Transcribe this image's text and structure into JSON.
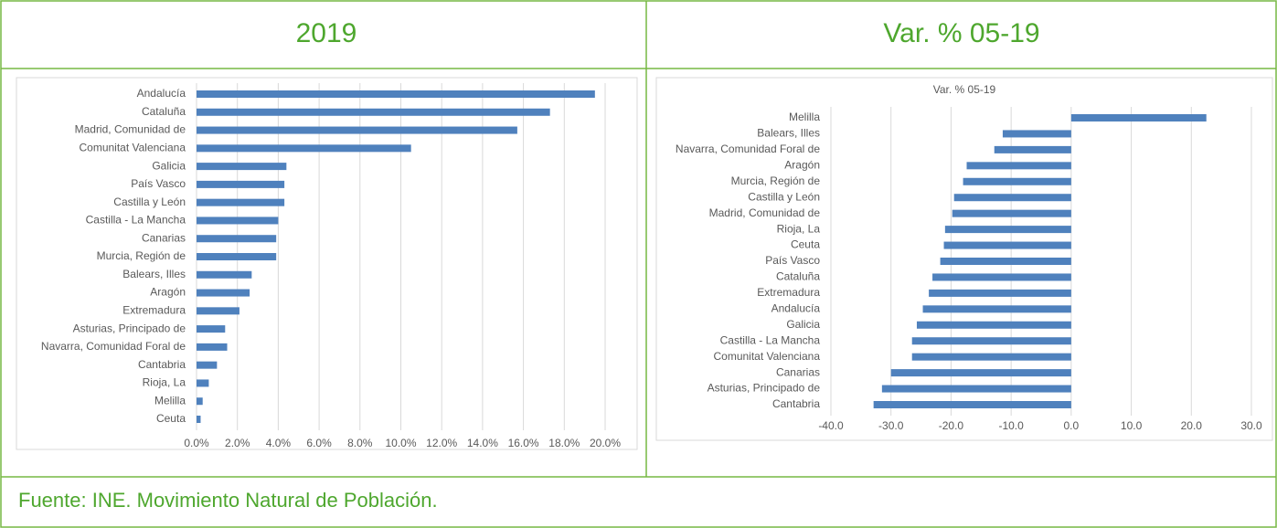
{
  "table": {
    "headers": [
      "2019",
      "Var. % 05-19"
    ],
    "footer": "Fuente: INE. Movimiento Natural de Población."
  },
  "chart_data": [
    {
      "type": "hbar",
      "color": "#4f81bd",
      "grid": true,
      "categories": [
        "Andalucía",
        "Cataluña",
        "Madrid, Comunidad de",
        "Comunitat Valenciana",
        "Galicia",
        "País Vasco",
        "Castilla y León",
        "Castilla - La Mancha",
        "Canarias",
        "Murcia, Región de",
        "Balears, Illes",
        "Aragón",
        "Extremadura",
        "Asturias, Principado de",
        "Navarra, Comunidad Foral de",
        "Cantabria",
        "Rioja, La",
        "Melilla",
        "Ceuta"
      ],
      "values": [
        19.5,
        17.3,
        15.7,
        10.5,
        4.4,
        4.3,
        4.3,
        4.0,
        3.9,
        3.9,
        2.7,
        2.6,
        2.1,
        1.4,
        1.5,
        1.0,
        0.6,
        0.3,
        0.2
      ],
      "xlim": [
        0,
        20
      ],
      "xticks": [
        {
          "value": 0,
          "label": "0.0%"
        },
        {
          "value": 2,
          "label": "2.0%"
        },
        {
          "value": 4,
          "label": "4.0%"
        },
        {
          "value": 6,
          "label": "6.0%"
        },
        {
          "value": 8,
          "label": "8.0%"
        },
        {
          "value": 10,
          "label": "10.0%"
        },
        {
          "value": 12,
          "label": "12.0%"
        },
        {
          "value": 14,
          "label": "14.0%"
        },
        {
          "value": 16,
          "label": "16.0%"
        },
        {
          "value": 18,
          "label": "18.0%"
        },
        {
          "value": 20,
          "label": "20.0%"
        }
      ]
    },
    {
      "type": "hbar",
      "title": "Var. % 05-19",
      "color": "#4f81bd",
      "grid": true,
      "categories": [
        "Melilla",
        "Balears, Illes",
        "Navarra, Comunidad Foral de",
        "Aragón",
        "Murcia, Región de",
        "Castilla y León",
        "Madrid, Comunidad de",
        "Rioja, La",
        "Ceuta",
        "País Vasco",
        "Cataluña",
        "Extremadura",
        "Andalucía",
        "Galicia",
        "Castilla - La Mancha",
        "Comunitat Valenciana",
        "Canarias",
        "Asturias, Principado de",
        "Cantabria"
      ],
      "values": [
        22.5,
        -11.4,
        -12.8,
        -17.4,
        -18.0,
        -19.5,
        -19.8,
        -21.0,
        -21.2,
        -21.8,
        -23.1,
        -23.7,
        -24.7,
        -25.7,
        -26.5,
        -26.5,
        -30.0,
        -31.5,
        -32.9
      ],
      "xlim": [
        -40,
        30
      ],
      "xticks": [
        {
          "value": -40,
          "label": "-40.0"
        },
        {
          "value": -30,
          "label": "-30.0"
        },
        {
          "value": -20,
          "label": "-20.0"
        },
        {
          "value": -10,
          "label": "-10.0"
        },
        {
          "value": 0,
          "label": "0.0"
        },
        {
          "value": 10,
          "label": "10.0"
        },
        {
          "value": 20,
          "label": "20.0"
        },
        {
          "value": 30,
          "label": "30.0"
        }
      ]
    }
  ]
}
